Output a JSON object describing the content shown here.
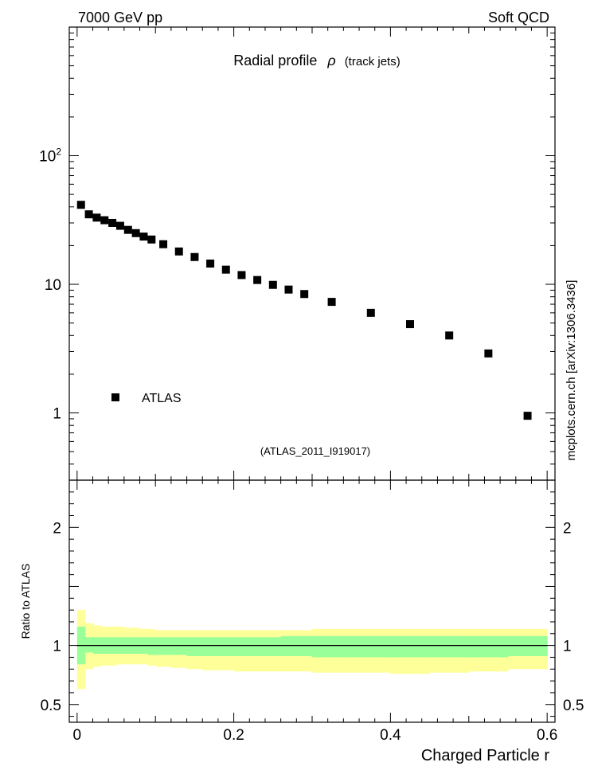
{
  "header": {
    "left": "7000 GeV pp",
    "right": "Soft QCD"
  },
  "title": {
    "main": "Radial profile",
    "symbol": "ρ",
    "sub": "(track jets)"
  },
  "analysis_label": "(ATLAS_2011_I919017)",
  "side_label": "mcplots.cern.ch [arXiv:1306.3436]",
  "colors": {
    "band_outer": "#ffff99",
    "band_inner": "#99ff99",
    "markers": "#000000",
    "analysis_label": "#999999",
    "side_label": "#777777"
  },
  "chart_data": [
    {
      "type": "scatter",
      "title": "Radial profile ρ (track jets)",
      "xlabel": "",
      "ylabel": "",
      "xlim": [
        -0.01,
        0.61
      ],
      "ylim": [
        0.3,
        1000
      ],
      "yscale": "log",
      "grid": false,
      "legend_position": "lower-left",
      "yticks": [
        {
          "value": 1,
          "label": "1"
        },
        {
          "value": 10,
          "label": "10"
        },
        {
          "value": 100,
          "label": "10",
          "exp": "2"
        }
      ],
      "series": [
        {
          "name": "ATLAS",
          "x": [
            0.005,
            0.015,
            0.025,
            0.035,
            0.045,
            0.055,
            0.065,
            0.075,
            0.085,
            0.095,
            0.11,
            0.13,
            0.15,
            0.17,
            0.19,
            0.21,
            0.23,
            0.25,
            0.27,
            0.29,
            0.325,
            0.375,
            0.425,
            0.475,
            0.525,
            0.575
          ],
          "y": [
            41.5,
            35.0,
            33.0,
            31.5,
            30.0,
            28.5,
            26.5,
            25.0,
            23.5,
            22.3,
            20.5,
            18.0,
            16.3,
            14.5,
            13.0,
            11.8,
            10.8,
            9.9,
            9.1,
            8.4,
            7.3,
            6.0,
            4.9,
            4.0,
            2.9,
            0.95
          ]
        }
      ]
    },
    {
      "type": "area",
      "title": "",
      "xlabel": "Charged Particle r",
      "ylabel": "Ratio to ATLAS",
      "xlim": [
        -0.01,
        0.61
      ],
      "ylim": [
        0.35,
        2.4
      ],
      "reference_line": 1.0,
      "xticks": [
        {
          "value": 0,
          "label": "0"
        },
        {
          "value": 0.2,
          "label": "0.2"
        },
        {
          "value": 0.4,
          "label": "0.4"
        },
        {
          "value": 0.6,
          "label": "0.6"
        }
      ],
      "yticks": [
        {
          "value": 0.5,
          "label": "0.5"
        },
        {
          "value": 1,
          "label": "1"
        },
        {
          "value": 2,
          "label": "2"
        }
      ],
      "bins": [
        0,
        0.01,
        0.02,
        0.03,
        0.04,
        0.05,
        0.06,
        0.07,
        0.08,
        0.09,
        0.1,
        0.12,
        0.14,
        0.16,
        0.18,
        0.2,
        0.22,
        0.24,
        0.26,
        0.28,
        0.3,
        0.35,
        0.4,
        0.45,
        0.5,
        0.55,
        0.6
      ],
      "band_outer_low": [
        0.63,
        0.8,
        0.82,
        0.83,
        0.83,
        0.84,
        0.84,
        0.84,
        0.84,
        0.83,
        0.82,
        0.81,
        0.8,
        0.79,
        0.79,
        0.78,
        0.78,
        0.78,
        0.78,
        0.78,
        0.77,
        0.77,
        0.76,
        0.77,
        0.78,
        0.8
      ],
      "band_outer_high": [
        1.3,
        1.19,
        1.17,
        1.16,
        1.16,
        1.16,
        1.15,
        1.15,
        1.14,
        1.14,
        1.13,
        1.13,
        1.13,
        1.13,
        1.13,
        1.13,
        1.13,
        1.13,
        1.13,
        1.13,
        1.14,
        1.14,
        1.14,
        1.14,
        1.14,
        1.14
      ],
      "band_inner_low": [
        0.84,
        0.94,
        0.93,
        0.93,
        0.93,
        0.93,
        0.93,
        0.93,
        0.93,
        0.92,
        0.92,
        0.92,
        0.91,
        0.91,
        0.91,
        0.91,
        0.91,
        0.91,
        0.91,
        0.91,
        0.9,
        0.9,
        0.9,
        0.9,
        0.9,
        0.91
      ],
      "band_inner_high": [
        1.16,
        1.07,
        1.07,
        1.07,
        1.07,
        1.07,
        1.07,
        1.07,
        1.07,
        1.07,
        1.07,
        1.07,
        1.07,
        1.07,
        1.07,
        1.07,
        1.07,
        1.07,
        1.08,
        1.08,
        1.08,
        1.08,
        1.08,
        1.08,
        1.08,
        1.08
      ]
    }
  ]
}
